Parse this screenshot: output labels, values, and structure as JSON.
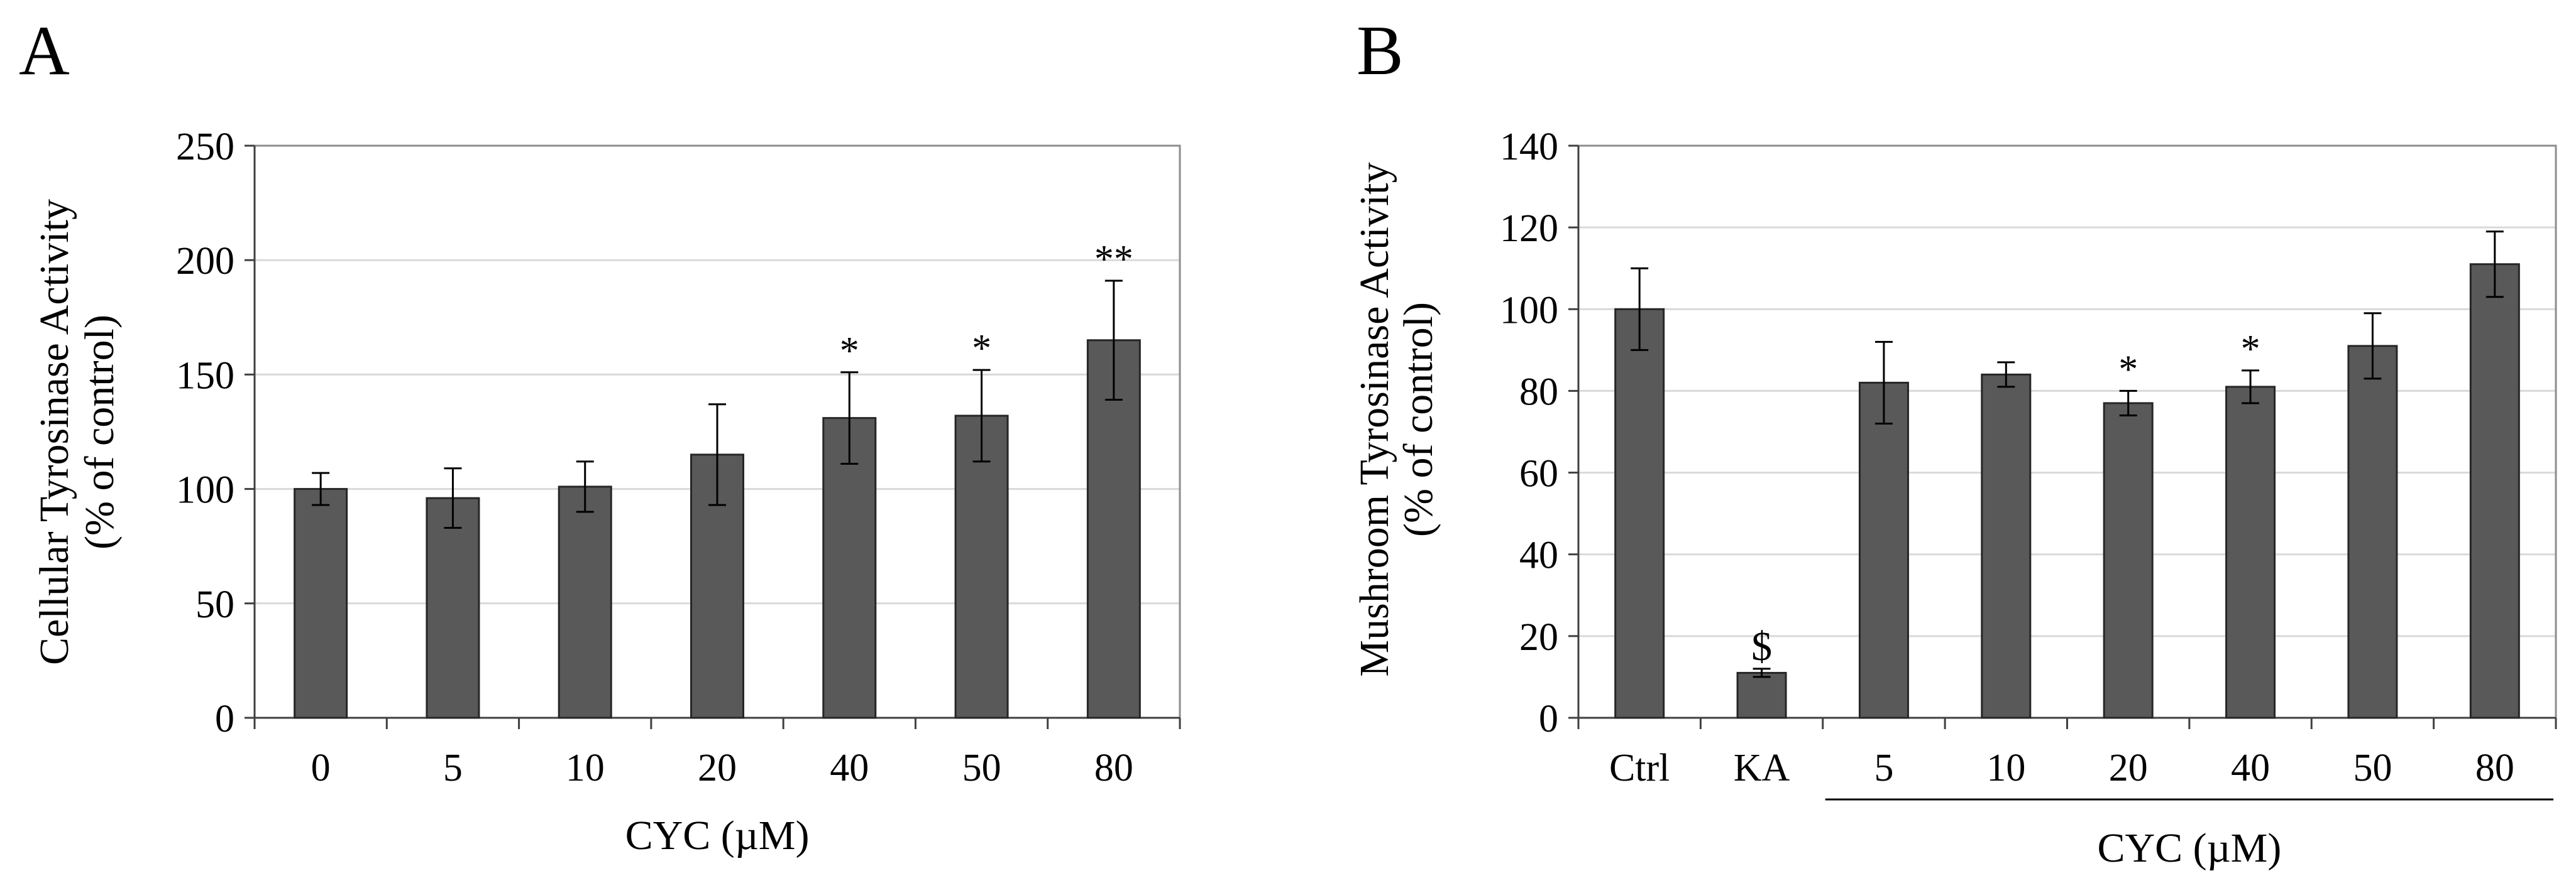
{
  "chart_data": [
    {
      "panel_label": "A",
      "type": "bar",
      "title": "",
      "categories": [
        "0",
        "5",
        "10",
        "20",
        "40",
        "50",
        "80"
      ],
      "values": [
        100,
        96,
        101,
        115,
        131,
        132,
        165
      ],
      "errors": [
        7,
        13,
        11,
        22,
        20,
        20,
        26
      ],
      "significance": [
        "",
        "",
        "",
        "",
        "*",
        "*",
        "**"
      ],
      "ylabel_line1": "Cellular Tyrosinase Activity",
      "ylabel_line2": "(% of control)",
      "xlabel": "CYC (µM)",
      "ylim": [
        0,
        250
      ],
      "yticks": [
        0,
        50,
        100,
        150,
        200,
        250
      ],
      "grid": true,
      "bar_color": "#595959"
    },
    {
      "panel_label": "B",
      "type": "bar",
      "title": "",
      "categories": [
        "Ctrl",
        "KA",
        "5",
        "10",
        "20",
        "40",
        "50",
        "80"
      ],
      "values": [
        100,
        11,
        82,
        84,
        77,
        81,
        91,
        111
      ],
      "errors": [
        10,
        1,
        10,
        3,
        3,
        4,
        8,
        8
      ],
      "significance": [
        "",
        "$",
        "",
        "",
        "*",
        "*",
        "",
        ""
      ],
      "ylabel_line1": "Mushroom Tyrosinase Activity",
      "ylabel_line2": "(% of control)",
      "xlabel": "CYC (µM)",
      "xlabel_group": {
        "from": 2,
        "to": 7
      },
      "ylim": [
        0,
        140
      ],
      "yticks": [
        0,
        20,
        40,
        60,
        80,
        100,
        120,
        140
      ],
      "grid": true,
      "bar_color": "#595959"
    }
  ]
}
